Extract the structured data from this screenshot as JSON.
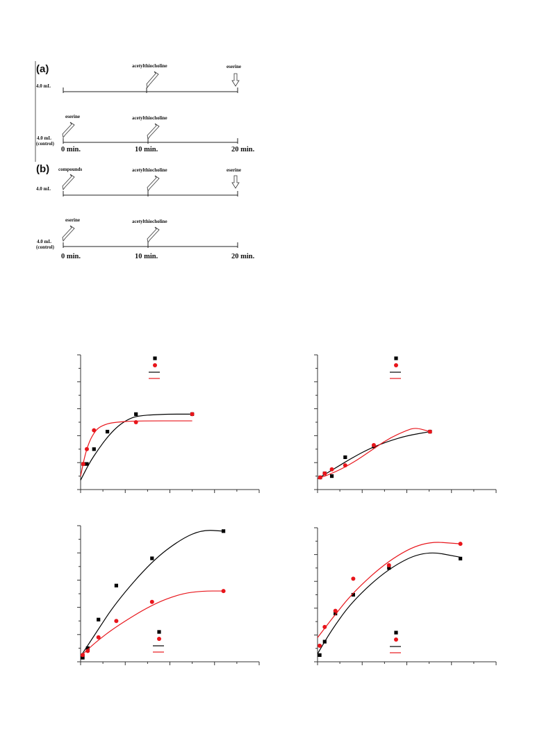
{
  "protocol_diagram": {
    "a": {
      "letter": "(a)",
      "test_volume": "4.0 mL",
      "test_mid_label": "acetylthiocholine",
      "test_end_label": "eserine",
      "control_volume": "4.0 mL",
      "control_note": "(control)",
      "control_start_label": "eserine",
      "control_mid_label": "acetylthiocholine",
      "t0": "0 min.",
      "t10": "10 min.",
      "t20": "20 min."
    },
    "b": {
      "letter": "(b)",
      "test_volume": "4.0 mL",
      "test_start_label": "compounds",
      "test_mid_label": "acetylthiocholine",
      "test_end_label": "eserine",
      "control_volume": "4.0 mL",
      "control_note": "(control)",
      "control_start_label": "eserine",
      "control_mid_label": "acetylthiocholine",
      "t0": "0 min.",
      "t10": "10 min.",
      "t20": "20 min."
    }
  },
  "colors": {
    "series_black": "#000000",
    "series_red": "#e8151b",
    "axis": "#333333"
  },
  "chart_data": [
    {
      "type": "scatter",
      "xlim": [
        0,
        20
      ],
      "ylim": [
        0,
        10
      ],
      "grid": false,
      "legend_position": "top-center",
      "series": [
        {
          "color": "#000000",
          "marker": "square",
          "x": [
            0.3,
            0.7,
            1.5,
            3.0,
            6.2,
            12.5
          ],
          "y": [
            1.9,
            1.9,
            3.0,
            4.3,
            5.6,
            5.6
          ],
          "fit": [
            [
              0,
              0.7
            ],
            [
              1,
              2.0
            ],
            [
              2,
              3.0
            ],
            [
              3,
              3.9
            ],
            [
              4,
              4.6
            ],
            [
              5,
              5.1
            ],
            [
              6,
              5.4
            ],
            [
              7,
              5.5
            ],
            [
              8,
              5.55
            ],
            [
              10,
              5.6
            ],
            [
              12.5,
              5.6
            ]
          ]
        },
        {
          "color": "#e8151b",
          "marker": "circle",
          "x": [
            0.3,
            0.7,
            1.5,
            6.2,
            12.5
          ],
          "y": [
            1.9,
            3.0,
            4.4,
            5.0,
            5.6
          ],
          "fit": [
            [
              0,
              1.0
            ],
            [
              0.5,
              2.6
            ],
            [
              1,
              3.6
            ],
            [
              1.5,
              4.2
            ],
            [
              2,
              4.6
            ],
            [
              3,
              4.9
            ],
            [
              4,
              5.0
            ],
            [
              6,
              5.1
            ],
            [
              12.5,
              5.1
            ]
          ]
        }
      ]
    },
    {
      "type": "scatter",
      "xlim": [
        0,
        20
      ],
      "ylim": [
        0,
        10
      ],
      "grid": false,
      "legend_position": "top-center",
      "series": [
        {
          "color": "#000000",
          "marker": "square",
          "x": [
            0.3,
            0.8,
            1.6,
            3.1,
            6.3,
            12.6
          ],
          "y": [
            0.9,
            1.2,
            1.0,
            2.4,
            3.2,
            4.3
          ],
          "fit": [
            [
              0,
              0.8
            ],
            [
              2,
              1.6
            ],
            [
              4,
              2.4
            ],
            [
              6,
              3.1
            ],
            [
              8,
              3.6
            ],
            [
              10,
              4.0
            ],
            [
              12.6,
              4.3
            ]
          ]
        },
        {
          "color": "#e8151b",
          "marker": "circle",
          "x": [
            0.3,
            0.8,
            1.6,
            3.1,
            6.3,
            12.6
          ],
          "y": [
            0.9,
            1.2,
            1.5,
            1.8,
            3.3,
            4.3
          ],
          "fit": [
            [
              0,
              0.8
            ],
            [
              2,
              1.3
            ],
            [
              4,
              2.0
            ],
            [
              6,
              2.9
            ],
            [
              8,
              3.8
            ],
            [
              10,
              4.4
            ],
            [
              11,
              4.6
            ],
            [
              12.6,
              4.3
            ]
          ]
        }
      ]
    },
    {
      "type": "scatter",
      "xlim": [
        0,
        25
      ],
      "ylim": [
        0,
        5
      ],
      "grid": false,
      "legend_position": "bottom-center",
      "series": [
        {
          "color": "#000000",
          "marker": "square",
          "x": [
            0.3,
            1.0,
            2.5,
            5.0,
            10.0,
            20.0
          ],
          "y": [
            0.15,
            0.5,
            1.55,
            2.8,
            3.8,
            4.8
          ],
          "fit": [
            [
              0,
              0.2
            ],
            [
              2,
              1.0
            ],
            [
              5,
              2.2
            ],
            [
              10,
              3.7
            ],
            [
              14,
              4.5
            ],
            [
              17,
              4.85
            ],
            [
              20,
              4.8
            ]
          ]
        },
        {
          "color": "#e8151b",
          "marker": "circle",
          "x": [
            0.3,
            1.0,
            2.5,
            5.0,
            10.0,
            20.0
          ],
          "y": [
            0.25,
            0.4,
            0.9,
            1.5,
            2.2,
            2.6
          ],
          "fit": [
            [
              0,
              0.2
            ],
            [
              2,
              0.7
            ],
            [
              5,
              1.3
            ],
            [
              10,
              2.1
            ],
            [
              14,
              2.5
            ],
            [
              17,
              2.6
            ],
            [
              20,
              2.6
            ]
          ]
        }
      ]
    },
    {
      "type": "scatter",
      "xlim": [
        0,
        25
      ],
      "ylim": [
        0,
        5
      ],
      "grid": false,
      "legend_position": "bottom-center",
      "series": [
        {
          "color": "#000000",
          "marker": "square",
          "x": [
            0.3,
            1.0,
            2.5,
            5.0,
            10.0,
            20.0
          ],
          "y": [
            0.25,
            0.75,
            1.8,
            2.5,
            3.5,
            3.85
          ],
          "fit": [
            [
              0,
              0.3
            ],
            [
              2,
              1.2
            ],
            [
              5,
              2.3
            ],
            [
              10,
              3.5
            ],
            [
              15,
              4.15
            ],
            [
              20,
              3.9
            ]
          ]
        },
        {
          "color": "#e8151b",
          "marker": "circle",
          "x": [
            0.3,
            1.0,
            2.5,
            5.0,
            10.0,
            20.0
          ],
          "y": [
            0.6,
            1.3,
            1.9,
            3.1,
            3.6,
            4.4
          ],
          "fit": [
            [
              0,
              0.9
            ],
            [
              2,
              1.6
            ],
            [
              5,
              2.6
            ],
            [
              10,
              3.8
            ],
            [
              15,
              4.5
            ],
            [
              20,
              4.4
            ]
          ]
        }
      ]
    }
  ]
}
